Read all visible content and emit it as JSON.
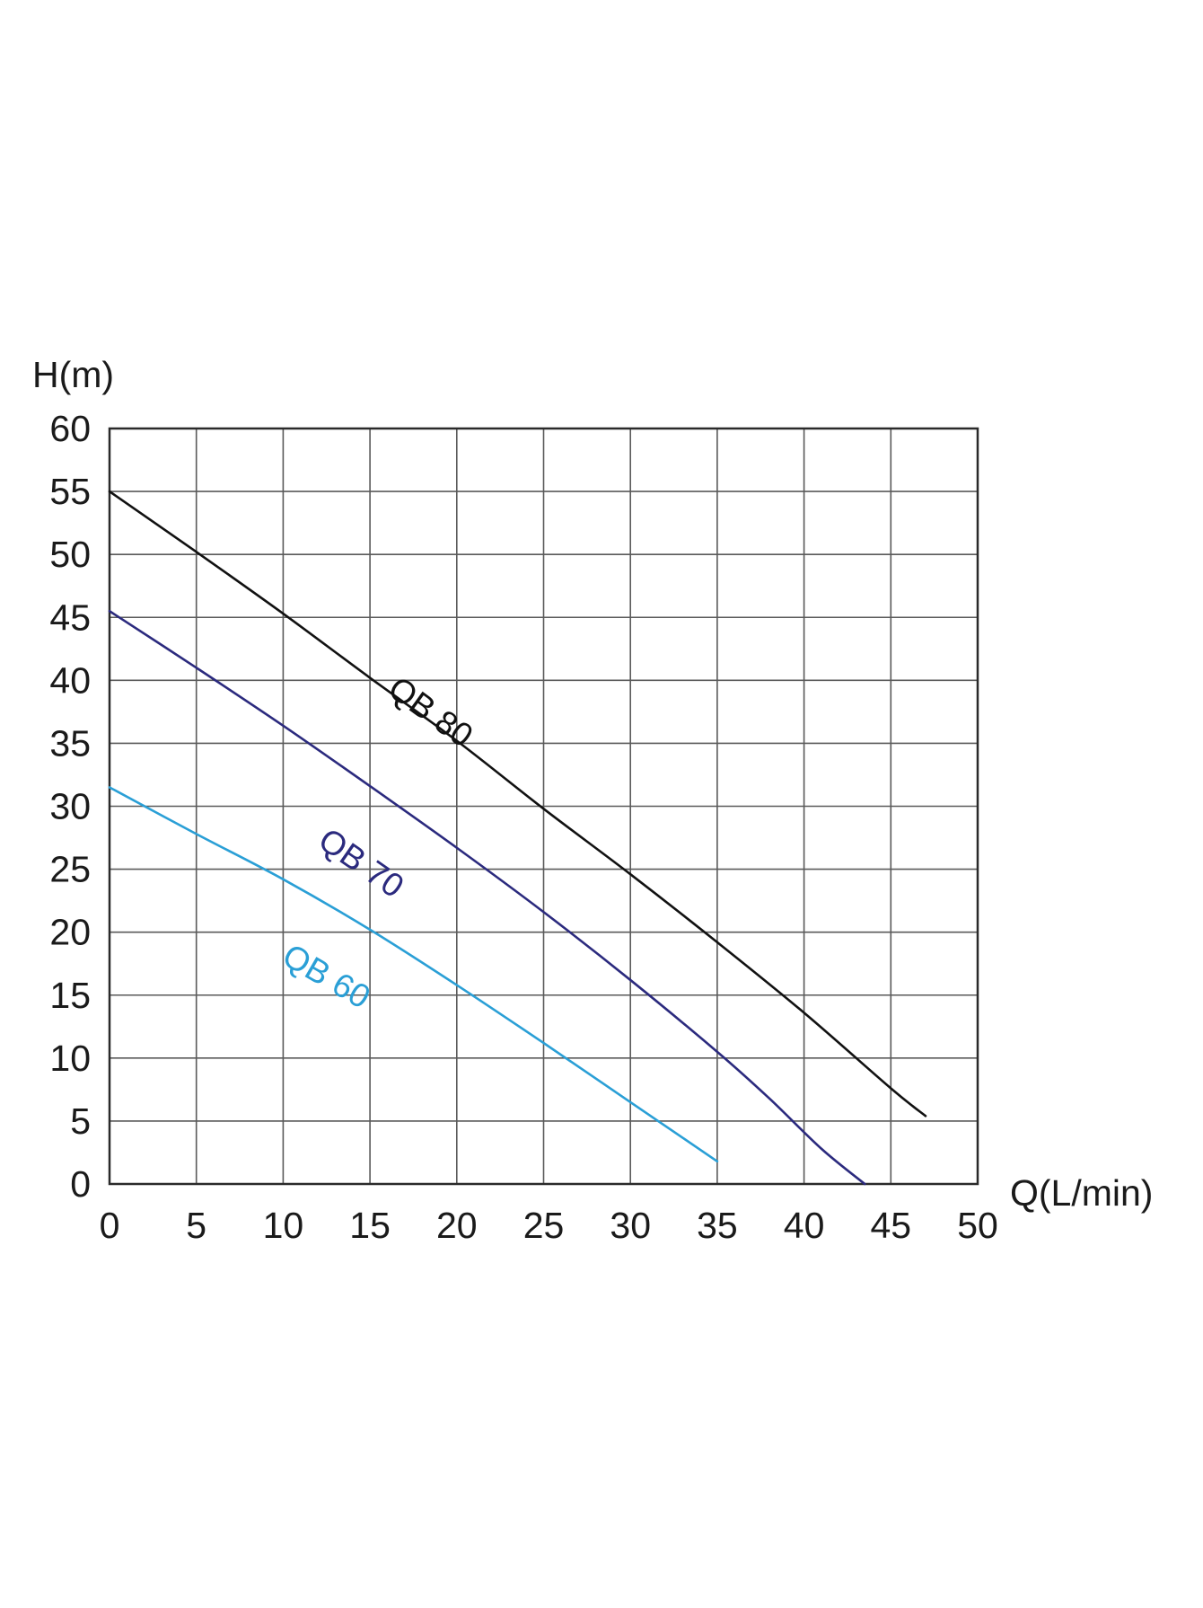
{
  "chart_data": {
    "type": "line",
    "xlabel": "Q(L/min)",
    "ylabel": "H(m)",
    "xlim": [
      0,
      50
    ],
    "ylim": [
      0,
      60
    ],
    "x_ticks": [
      0,
      5,
      10,
      15,
      20,
      25,
      30,
      35,
      40,
      45,
      50
    ],
    "y_ticks": [
      0,
      5,
      10,
      15,
      20,
      25,
      30,
      35,
      40,
      45,
      50,
      55,
      60
    ],
    "grid": true,
    "series": [
      {
        "name": "QB 80",
        "color": "#111111",
        "points": [
          [
            0,
            55
          ],
          [
            5,
            50.2
          ],
          [
            10,
            45.3
          ],
          [
            15,
            40.2
          ],
          [
            20,
            35.2
          ],
          [
            25,
            29.8
          ],
          [
            30,
            24.6
          ],
          [
            35,
            19.2
          ],
          [
            40,
            13.6
          ],
          [
            45,
            7.6
          ],
          [
            47,
            5.4
          ]
        ]
      },
      {
        "name": "QB 70",
        "color": "#2b2a7e",
        "points": [
          [
            0,
            45.5
          ],
          [
            5,
            41
          ],
          [
            10,
            36.4
          ],
          [
            15,
            31.6
          ],
          [
            20,
            26.7
          ],
          [
            25,
            21.6
          ],
          [
            30,
            16.2
          ],
          [
            35,
            10.5
          ],
          [
            38,
            6.8
          ],
          [
            41,
            2.8
          ],
          [
            43.5,
            0
          ]
        ]
      },
      {
        "name": "QB 60",
        "color": "#2a9fd6",
        "points": [
          [
            0,
            31.5
          ],
          [
            5,
            27.8
          ],
          [
            10,
            24.2
          ],
          [
            15,
            20.2
          ],
          [
            20,
            15.8
          ],
          [
            25,
            11.2
          ],
          [
            30,
            6.5
          ],
          [
            35,
            1.8
          ]
        ]
      }
    ],
    "series_label_positions": [
      [
        18.5,
        37.5
      ],
      [
        14.5,
        25.5
      ],
      [
        12.5,
        16.5
      ]
    ]
  }
}
